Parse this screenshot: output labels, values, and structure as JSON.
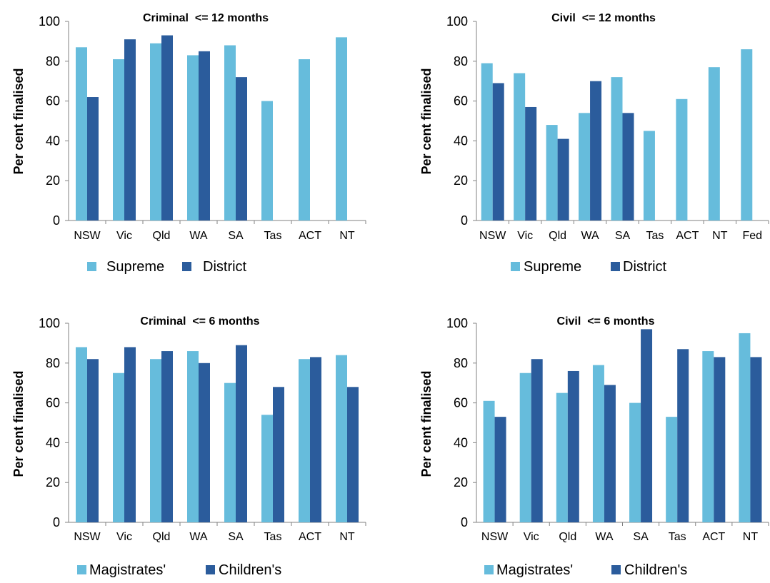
{
  "colors": {
    "light_series": "#66BCDC",
    "dark_series": "#2B5C9C",
    "axis": "#808080",
    "text": "#000000"
  },
  "chart_data": [
    {
      "type": "bar",
      "title": "Criminal  <= 12 months",
      "ylabel": "Per cent finalised",
      "xlabel": "",
      "ylim": [
        0,
        100
      ],
      "yticks": [
        0,
        20,
        40,
        60,
        80,
        100
      ],
      "categories": [
        "NSW",
        "Vic",
        "Qld",
        "WA",
        "SA",
        "Tas",
        "ACT",
        "NT"
      ],
      "series": [
        {
          "name": "Supreme",
          "color": "#66BCDC",
          "values": [
            87,
            81,
            89,
            83,
            88,
            60,
            81,
            92
          ]
        },
        {
          "name": "District",
          "color": "#2B5C9C",
          "values": [
            62,
            91,
            93,
            85,
            72,
            null,
            null,
            null
          ]
        }
      ],
      "legend": "bottom"
    },
    {
      "type": "bar",
      "title": "Civil  <= 12 months",
      "ylabel": "Per cent finalised",
      "xlabel": "",
      "ylim": [
        0,
        100
      ],
      "yticks": [
        0,
        20,
        40,
        60,
        80,
        100
      ],
      "categories": [
        "NSW",
        "Vic",
        "Qld",
        "WA",
        "SA",
        "Tas",
        "ACT",
        "NT",
        "Fed"
      ],
      "series": [
        {
          "name": "Supreme",
          "color": "#66BCDC",
          "values": [
            79,
            74,
            48,
            54,
            72,
            45,
            61,
            77,
            86
          ]
        },
        {
          "name": "District",
          "color": "#2B5C9C",
          "values": [
            69,
            57,
            41,
            70,
            54,
            null,
            null,
            null,
            null
          ]
        }
      ],
      "legend": "bottom"
    },
    {
      "type": "bar",
      "title": "Criminal  <= 6 months",
      "ylabel": "Per cent finalised",
      "xlabel": "",
      "ylim": [
        0,
        100
      ],
      "yticks": [
        0,
        20,
        40,
        60,
        80,
        100
      ],
      "categories": [
        "NSW",
        "Vic",
        "Qld",
        "WA",
        "SA",
        "Tas",
        "ACT",
        "NT"
      ],
      "series": [
        {
          "name": "Magistrates'",
          "color": "#66BCDC",
          "values": [
            88,
            75,
            82,
            86,
            70,
            54,
            82,
            84
          ]
        },
        {
          "name": "Children's",
          "color": "#2B5C9C",
          "values": [
            82,
            88,
            86,
            80,
            89,
            68,
            83,
            68
          ]
        }
      ],
      "legend": "bottom"
    },
    {
      "type": "bar",
      "title": "Civil  <= 6 months",
      "ylabel": "Per cent finalised",
      "xlabel": "",
      "ylim": [
        0,
        100
      ],
      "yticks": [
        0,
        20,
        40,
        60,
        80,
        100
      ],
      "categories": [
        "NSW",
        "Vic",
        "Qld",
        "WA",
        "SA",
        "Tas",
        "ACT",
        "NT"
      ],
      "series": [
        {
          "name": "Magistrates'",
          "color": "#66BCDC",
          "values": [
            61,
            75,
            65,
            79,
            60,
            53,
            86,
            95
          ]
        },
        {
          "name": "Children's",
          "color": "#2B5C9C",
          "values": [
            53,
            82,
            76,
            69,
            97,
            87,
            83,
            83
          ]
        }
      ],
      "legend": "bottom"
    }
  ]
}
